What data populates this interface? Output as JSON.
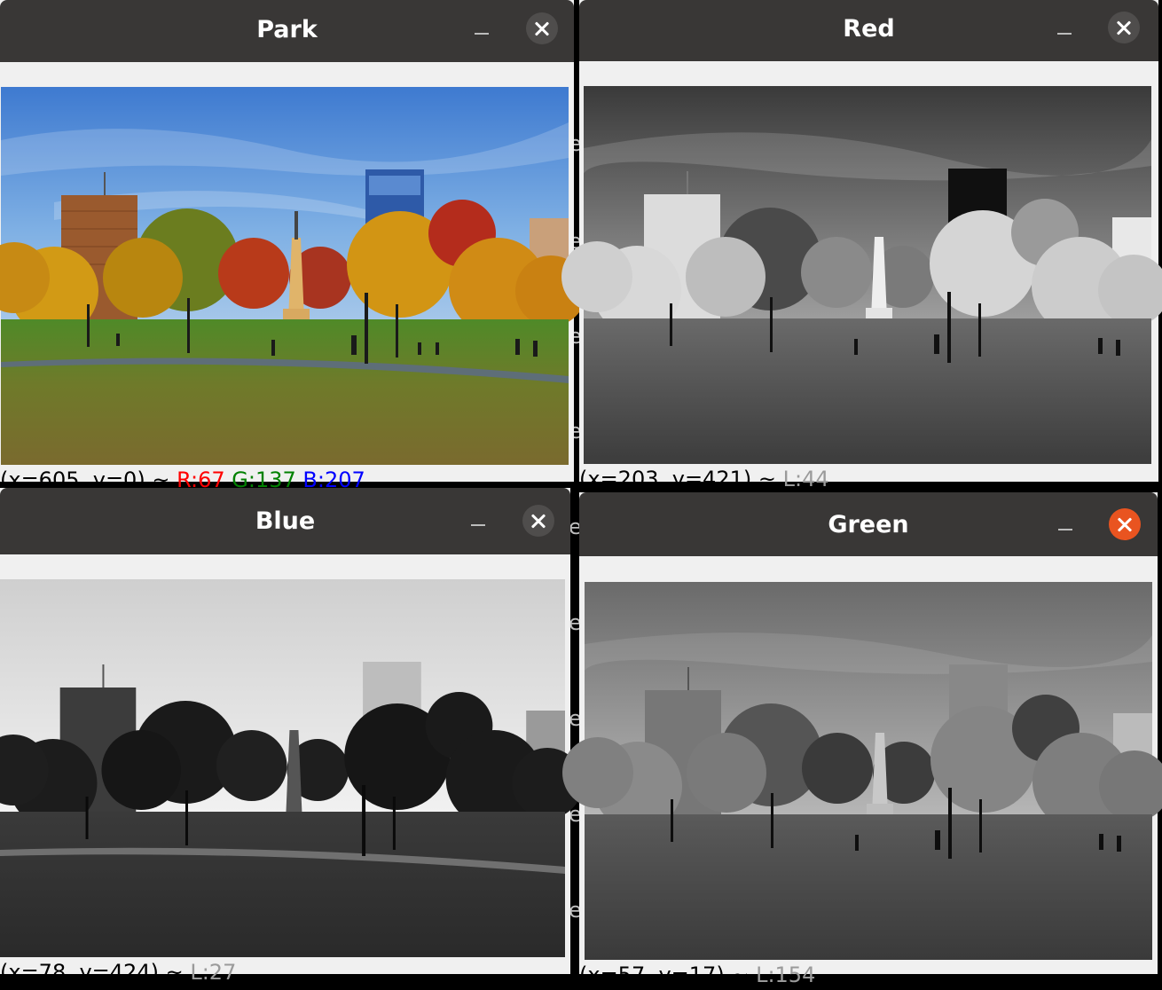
{
  "windows": {
    "park": {
      "title": "Park",
      "status": {
        "coords": "(x=605, y=0) ~",
        "r": "R:67",
        "g": "G:137",
        "b": "B:207"
      }
    },
    "red": {
      "title": "Red",
      "status": {
        "coords": "(x=203, y=421) ~",
        "l": "L:44"
      }
    },
    "blue": {
      "title": "Blue",
      "status": {
        "coords": "(x=78, y=424) ~",
        "l": "L:27"
      }
    },
    "green": {
      "title": "Green",
      "status": {
        "coords": "(x=57, y=17) ~",
        "l": "L:154"
      }
    }
  },
  "colors": {
    "titlebar": "#393736",
    "close_active": "#e95420",
    "close_inactive": "#4f4d4c",
    "status_r": "#ff0000",
    "status_g": "#008000",
    "status_b": "#0000ff",
    "status_l": "#9a9a9a"
  },
  "icons": {
    "minimize": "minimize-icon",
    "close": "close-icon"
  }
}
